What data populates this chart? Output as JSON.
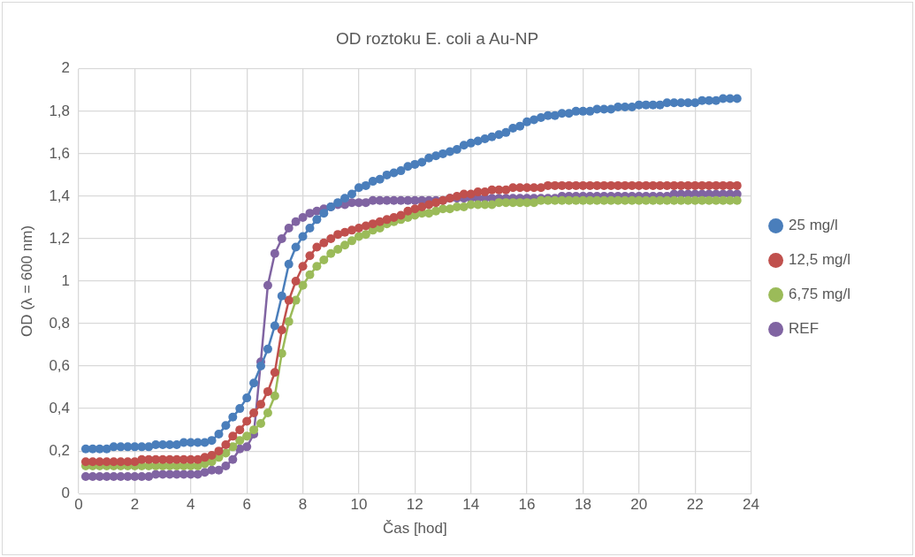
{
  "chart_data": {
    "type": "line",
    "title": "OD roztoku E. coli a Au-NP",
    "xlabel": "Čas [hod]",
    "ylabel": "OD (λ = 600 nm)",
    "x": [
      0.25,
      0.5,
      0.75,
      1,
      1.25,
      1.5,
      1.75,
      2,
      2.25,
      2.5,
      2.75,
      3,
      3.25,
      3.5,
      3.75,
      4,
      4.25,
      4.5,
      4.75,
      5,
      5.25,
      5.5,
      5.75,
      6,
      6.25,
      6.5,
      6.75,
      7,
      7.25,
      7.5,
      7.75,
      8,
      8.25,
      8.5,
      8.75,
      9,
      9.25,
      9.5,
      9.75,
      10,
      10.25,
      10.5,
      10.75,
      11,
      11.25,
      11.5,
      11.75,
      12,
      12.25,
      12.5,
      12.75,
      13,
      13.25,
      13.5,
      13.75,
      14,
      14.25,
      14.5,
      14.75,
      15,
      15.25,
      15.5,
      15.75,
      16,
      16.25,
      16.5,
      16.75,
      17,
      17.25,
      17.5,
      17.75,
      18,
      18.25,
      18.5,
      18.75,
      19,
      19.25,
      19.5,
      19.75,
      20,
      20.25,
      20.5,
      20.75,
      21,
      21.25,
      21.5,
      21.75,
      22,
      22.25,
      22.5,
      22.75,
      23,
      23.25,
      23.5
    ],
    "series": [
      {
        "name": "25 mg/l",
        "color": "#4a7ebb",
        "values": [
          0.21,
          0.21,
          0.21,
          0.21,
          0.22,
          0.22,
          0.22,
          0.22,
          0.22,
          0.22,
          0.23,
          0.23,
          0.23,
          0.23,
          0.24,
          0.24,
          0.24,
          0.24,
          0.25,
          0.28,
          0.32,
          0.36,
          0.4,
          0.45,
          0.52,
          0.6,
          0.68,
          0.79,
          0.93,
          1.08,
          1.16,
          1.21,
          1.25,
          1.29,
          1.32,
          1.35,
          1.37,
          1.39,
          1.41,
          1.44,
          1.45,
          1.47,
          1.48,
          1.5,
          1.51,
          1.52,
          1.54,
          1.55,
          1.56,
          1.58,
          1.59,
          1.6,
          1.61,
          1.62,
          1.64,
          1.65,
          1.66,
          1.67,
          1.68,
          1.69,
          1.7,
          1.72,
          1.73,
          1.75,
          1.76,
          1.77,
          1.78,
          1.78,
          1.79,
          1.79,
          1.8,
          1.8,
          1.8,
          1.81,
          1.81,
          1.81,
          1.82,
          1.82,
          1.82,
          1.83,
          1.83,
          1.83,
          1.83,
          1.84,
          1.84,
          1.84,
          1.84,
          1.84,
          1.85,
          1.85,
          1.85,
          1.86,
          1.86,
          1.86
        ]
      },
      {
        "name": "12,5 mg/l",
        "color": "#c0504d",
        "values": [
          0.15,
          0.15,
          0.15,
          0.15,
          0.15,
          0.15,
          0.15,
          0.15,
          0.16,
          0.16,
          0.16,
          0.16,
          0.16,
          0.16,
          0.16,
          0.16,
          0.16,
          0.17,
          0.18,
          0.2,
          0.23,
          0.27,
          0.3,
          0.34,
          0.38,
          0.42,
          0.48,
          0.57,
          0.77,
          0.91,
          1.0,
          1.07,
          1.12,
          1.16,
          1.18,
          1.2,
          1.22,
          1.23,
          1.24,
          1.25,
          1.26,
          1.27,
          1.28,
          1.29,
          1.3,
          1.31,
          1.33,
          1.34,
          1.35,
          1.36,
          1.37,
          1.38,
          1.39,
          1.4,
          1.41,
          1.41,
          1.42,
          1.42,
          1.43,
          1.43,
          1.43,
          1.44,
          1.44,
          1.44,
          1.44,
          1.44,
          1.45,
          1.45,
          1.45,
          1.45,
          1.45,
          1.45,
          1.45,
          1.45,
          1.45,
          1.45,
          1.45,
          1.45,
          1.45,
          1.45,
          1.45,
          1.45,
          1.45,
          1.45,
          1.45,
          1.45,
          1.45,
          1.45,
          1.45,
          1.45,
          1.45,
          1.45,
          1.45,
          1.45
        ]
      },
      {
        "name": "6,75 mg/l",
        "color": "#9bbb59",
        "values": [
          0.13,
          0.13,
          0.13,
          0.13,
          0.13,
          0.13,
          0.13,
          0.13,
          0.13,
          0.13,
          0.13,
          0.13,
          0.13,
          0.13,
          0.13,
          0.13,
          0.13,
          0.14,
          0.15,
          0.17,
          0.19,
          0.22,
          0.25,
          0.27,
          0.3,
          0.33,
          0.38,
          0.46,
          0.66,
          0.81,
          0.91,
          0.98,
          1.03,
          1.07,
          1.1,
          1.13,
          1.15,
          1.17,
          1.19,
          1.21,
          1.22,
          1.24,
          1.25,
          1.27,
          1.28,
          1.29,
          1.3,
          1.31,
          1.32,
          1.32,
          1.33,
          1.34,
          1.34,
          1.35,
          1.35,
          1.36,
          1.36,
          1.36,
          1.36,
          1.37,
          1.37,
          1.37,
          1.37,
          1.37,
          1.37,
          1.38,
          1.38,
          1.38,
          1.38,
          1.38,
          1.38,
          1.38,
          1.38,
          1.38,
          1.38,
          1.38,
          1.38,
          1.38,
          1.38,
          1.38,
          1.38,
          1.38,
          1.38,
          1.38,
          1.38,
          1.38,
          1.38,
          1.38,
          1.38,
          1.38,
          1.38,
          1.38,
          1.38,
          1.38
        ]
      },
      {
        "name": "REF",
        "color": "#8064a2",
        "values": [
          0.08,
          0.08,
          0.08,
          0.08,
          0.08,
          0.08,
          0.08,
          0.08,
          0.08,
          0.08,
          0.09,
          0.09,
          0.09,
          0.09,
          0.09,
          0.09,
          0.09,
          0.1,
          0.11,
          0.11,
          0.13,
          0.16,
          0.21,
          0.22,
          0.28,
          0.62,
          0.98,
          1.13,
          1.2,
          1.25,
          1.28,
          1.3,
          1.32,
          1.33,
          1.34,
          1.35,
          1.36,
          1.36,
          1.37,
          1.37,
          1.37,
          1.38,
          1.38,
          1.38,
          1.38,
          1.38,
          1.38,
          1.38,
          1.38,
          1.38,
          1.38,
          1.38,
          1.39,
          1.39,
          1.39,
          1.39,
          1.39,
          1.39,
          1.39,
          1.39,
          1.39,
          1.39,
          1.39,
          1.39,
          1.39,
          1.39,
          1.39,
          1.39,
          1.4,
          1.4,
          1.4,
          1.4,
          1.4,
          1.4,
          1.4,
          1.4,
          1.4,
          1.4,
          1.4,
          1.4,
          1.4,
          1.4,
          1.4,
          1.4,
          1.41,
          1.41,
          1.41,
          1.41,
          1.41,
          1.41,
          1.41,
          1.41,
          1.41,
          1.41
        ]
      }
    ],
    "xlim": [
      0,
      24
    ],
    "xticks": [
      0,
      2,
      4,
      6,
      8,
      10,
      12,
      14,
      16,
      18,
      20,
      22,
      24
    ],
    "ylim": [
      0,
      2
    ],
    "yticks": [
      0,
      {
        "value": 0.2,
        "label": "0,2"
      },
      {
        "value": 0.4,
        "label": "0,4"
      },
      {
        "value": 0.6,
        "label": "0,6"
      },
      {
        "value": 0.8,
        "label": "0,8"
      },
      1,
      {
        "value": 1.2,
        "label": "1,2"
      },
      {
        "value": 1.4,
        "label": "1,4"
      },
      {
        "value": 1.6,
        "label": "1,6"
      },
      {
        "value": 1.8,
        "label": "1,8"
      },
      2
    ],
    "grid": true,
    "legend": "right",
    "marker": "circle",
    "line_style": "solid"
  }
}
